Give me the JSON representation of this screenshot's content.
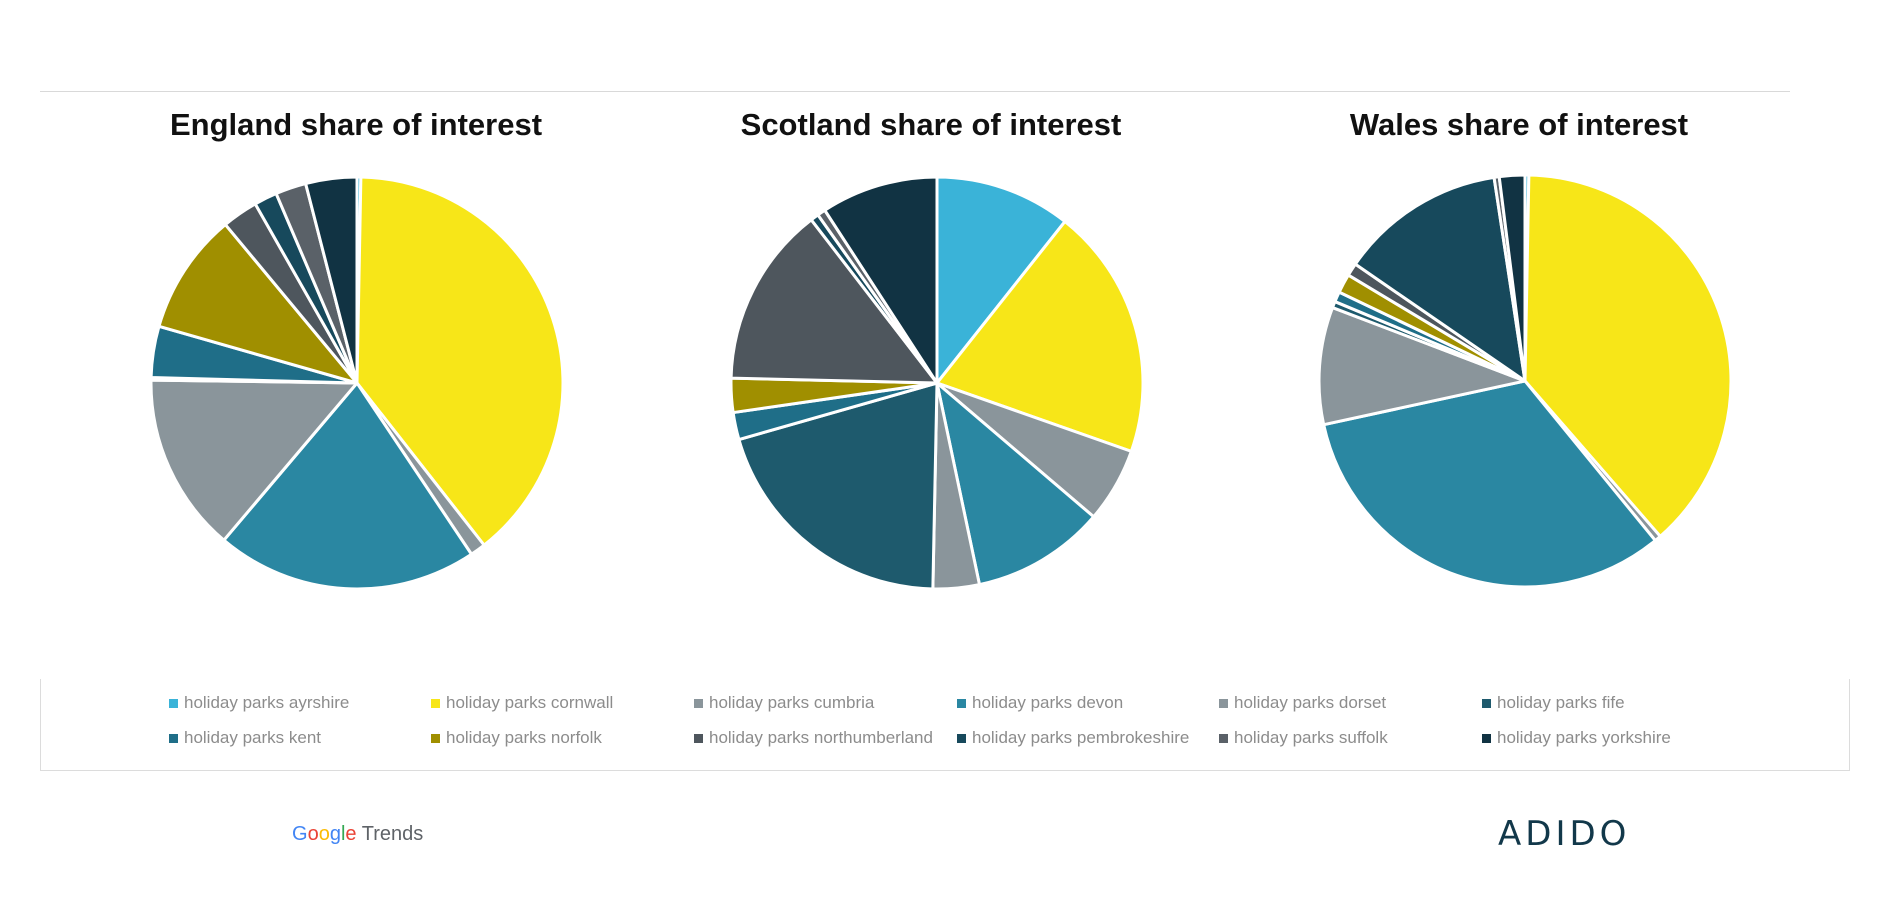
{
  "legend": [
    {
      "name": "holiday parks ayrshire",
      "color": "#3ab3d8"
    },
    {
      "name": "holiday parks cornwall",
      "color": "#f7e618"
    },
    {
      "name": "holiday parks cumbria",
      "color": "#8a959b"
    },
    {
      "name": "holiday parks devon",
      "color": "#2a87a2"
    },
    {
      "name": "holiday parks dorset",
      "color": "#8a959b"
    },
    {
      "name": "holiday parks fife",
      "color": "#1e5a6d"
    },
    {
      "name": "holiday parks kent",
      "color": "#1f6e88"
    },
    {
      "name": "holiday parks norfolk",
      "color": "#a08f00"
    },
    {
      "name": "holiday parks northumberland",
      "color": "#4e565d"
    },
    {
      "name": "holiday parks pembrokeshire",
      "color": "#17495c"
    },
    {
      "name": "holiday parks suffolk",
      "color": "#5a6168"
    },
    {
      "name": "holiday parks yorkshire",
      "color": "#113343"
    }
  ],
  "chart_data": [
    {
      "type": "pie",
      "title": "England share of interest",
      "slices": [
        {
          "label": "holiday parks ayrshire",
          "value": 0.3
        },
        {
          "label": "holiday parks cornwall",
          "value": 39.0
        },
        {
          "label": "holiday parks cumbria",
          "value": 1.2
        },
        {
          "label": "holiday parks devon",
          "value": 20.5
        },
        {
          "label": "holiday parks dorset",
          "value": 14.0
        },
        {
          "label": "holiday parks fife",
          "value": 0.2
        },
        {
          "label": "holiday parks kent",
          "value": 4.0
        },
        {
          "label": "holiday parks norfolk",
          "value": 9.5
        },
        {
          "label": "holiday parks northumberland",
          "value": 2.8
        },
        {
          "label": "holiday parks pembrokeshire",
          "value": 1.8
        },
        {
          "label": "holiday parks suffolk",
          "value": 2.4
        },
        {
          "label": "holiday parks yorkshire",
          "value": 4.0
        }
      ]
    },
    {
      "type": "pie",
      "title": "Scotland share of interest",
      "slices": [
        {
          "label": "holiday parks ayrshire",
          "value": 10.0
        },
        {
          "label": "holiday parks cornwall",
          "value": 18.5
        },
        {
          "label": "holiday parks cumbria",
          "value": 5.5
        },
        {
          "label": "holiday parks devon",
          "value": 9.8
        },
        {
          "label": "holiday parks dorset",
          "value": 3.4
        },
        {
          "label": "holiday parks fife",
          "value": 19.0
        },
        {
          "label": "holiday parks kent",
          "value": 2.0
        },
        {
          "label": "holiday parks norfolk",
          "value": 2.5
        },
        {
          "label": "holiday parks northumberland",
          "value": 13.3
        },
        {
          "label": "holiday parks pembrokeshire",
          "value": 0.6
        },
        {
          "label": "holiday parks suffolk",
          "value": 0.6
        },
        {
          "label": "holiday parks yorkshire",
          "value": 8.6
        }
      ]
    },
    {
      "type": "pie",
      "title": "Wales share of interest",
      "slices": [
        {
          "label": "holiday parks ayrshire",
          "value": 0.3
        },
        {
          "label": "holiday parks cornwall",
          "value": 38.3
        },
        {
          "label": "holiday parks cumbria",
          "value": 0.5
        },
        {
          "label": "holiday parks devon",
          "value": 32.5
        },
        {
          "label": "holiday parks dorset",
          "value": 9.2
        },
        {
          "label": "holiday parks fife",
          "value": 0.5
        },
        {
          "label": "holiday parks kent",
          "value": 0.8
        },
        {
          "label": "holiday parks norfolk",
          "value": 1.5
        },
        {
          "label": "holiday parks northumberland",
          "value": 1.0
        },
        {
          "label": "holiday parks pembrokeshire",
          "value": 13.0
        },
        {
          "label": "holiday parks suffolk",
          "value": 0.4
        },
        {
          "label": "holiday parks yorkshire",
          "value": 2.0
        }
      ]
    }
  ],
  "footer": {
    "google_parts": [
      "G",
      "o",
      "o",
      "g",
      "l",
      "e"
    ],
    "trends": "Trends",
    "brand": "ADIDO"
  }
}
